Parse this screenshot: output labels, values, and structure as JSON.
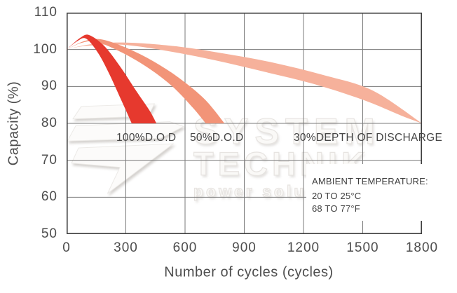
{
  "watermark": {
    "line1": "SYSTEM",
    "line2": "TECHNIK",
    "line3": "power solutions"
  },
  "chart_data": {
    "type": "area",
    "title": "",
    "xlabel": "Number of cycles (cycles)",
    "ylabel": "Capacity (%)",
    "xlim": [
      0,
      1800
    ],
    "ylim": [
      50,
      110
    ],
    "x_ticks": [
      0,
      300,
      600,
      900,
      1200,
      1500,
      1800
    ],
    "y_ticks": [
      110,
      100,
      90,
      80,
      70,
      60,
      50
    ],
    "grid": true,
    "grid_color": "#7a7a7a",
    "border_color": "#3f3f3f",
    "series": [
      {
        "name": "100%D.O.D",
        "color": "#e6392e",
        "upper": [
          [
            0,
            100
          ],
          [
            70,
            103.2
          ],
          [
            115,
            103.9
          ],
          [
            190,
            101
          ],
          [
            270,
            95.5
          ],
          [
            350,
            89
          ],
          [
            420,
            83.5
          ],
          [
            455,
            80
          ]
        ],
        "lower": [
          [
            0,
            100
          ],
          [
            55,
            102.3
          ],
          [
            100,
            102.9
          ],
          [
            160,
            99
          ],
          [
            215,
            93.5
          ],
          [
            275,
            86.5
          ],
          [
            330,
            80
          ]
        ]
      },
      {
        "name": "50%D.O.D",
        "color": "#f29478",
        "upper": [
          [
            0,
            100
          ],
          [
            90,
            102.3
          ],
          [
            180,
            102.7
          ],
          [
            310,
            100.3
          ],
          [
            440,
            96.8
          ],
          [
            570,
            92.3
          ],
          [
            700,
            86.5
          ],
          [
            800,
            80
          ]
        ],
        "lower": [
          [
            0,
            100
          ],
          [
            75,
            101.8
          ],
          [
            150,
            102.1
          ],
          [
            280,
            99.2
          ],
          [
            420,
            94.8
          ],
          [
            540,
            89.8
          ],
          [
            640,
            84.2
          ],
          [
            705,
            80
          ]
        ]
      },
      {
        "name": "30%DEPTH OF DISCHARGE",
        "color": "#f6b19b",
        "upper": [
          [
            0,
            100
          ],
          [
            120,
            101.4
          ],
          [
            300,
            101.9
          ],
          [
            550,
            100.9
          ],
          [
            800,
            98.9
          ],
          [
            1050,
            96.4
          ],
          [
            1300,
            93.1
          ],
          [
            1550,
            88.9
          ],
          [
            1800,
            80
          ]
        ],
        "lower": [
          [
            0,
            100
          ],
          [
            100,
            101
          ],
          [
            280,
            101.3
          ],
          [
            500,
            99.7
          ],
          [
            750,
            97.1
          ],
          [
            1000,
            94
          ],
          [
            1250,
            90.7
          ],
          [
            1500,
            86.4
          ],
          [
            1700,
            82
          ],
          [
            1800,
            80
          ]
        ]
      }
    ],
    "annotation": {
      "lines": [
        "AMBIENT TEMPERATURE:",
        "20 TO 25°C",
        "68 TO 77°F"
      ]
    }
  }
}
